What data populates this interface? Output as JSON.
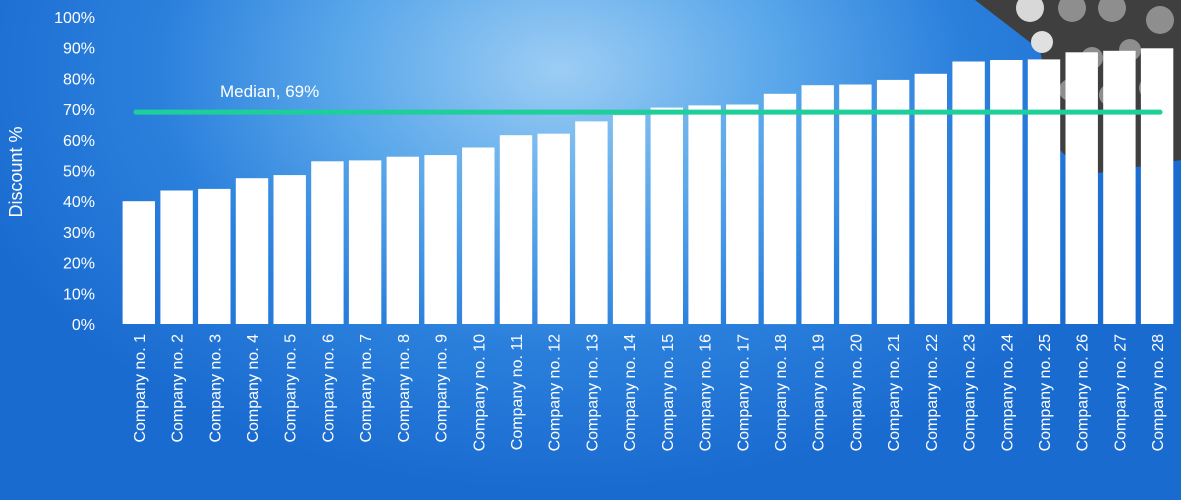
{
  "chart_data": {
    "type": "bar",
    "ylabel": "Discount %",
    "ylim": [
      0,
      100
    ],
    "yticks": [
      "0%",
      "10%",
      "20%",
      "30%",
      "40%",
      "50%",
      "60%",
      "70%",
      "80%",
      "90%",
      "100%"
    ],
    "categories": [
      "Company no. 1",
      "Company no. 2",
      "Company no. 3",
      "Company no. 4",
      "Company no. 5",
      "Company no. 6",
      "Company no. 7",
      "Company no. 8",
      "Company no. 9",
      "Company no. 10",
      "Company no. 11",
      "Company no. 12",
      "Company no. 13",
      "Company no. 14",
      "Company no. 15",
      "Company no. 16",
      "Company no. 17",
      "Company no. 18",
      "Company no. 19",
      "Company no. 20",
      "Company no. 21",
      "Company no. 22",
      "Company no. 23",
      "Company no. 24",
      "Company no. 25",
      "Company no. 26",
      "Company no. 27",
      "Company no. 28"
    ],
    "values": [
      40,
      43.5,
      44,
      47.5,
      48.5,
      53,
      53.3,
      54.5,
      55,
      57.5,
      61.5,
      62,
      66,
      68,
      70.5,
      71.2,
      71.5,
      75,
      77.8,
      78,
      79.5,
      81.5,
      85.5,
      86,
      86.2,
      88.5,
      89,
      89.8
    ],
    "median": {
      "value": 69,
      "label": "Median, 69%"
    },
    "colors": {
      "bars": "#ffffff",
      "median_line": "#1fcf9a",
      "background": "#2b80dc"
    },
    "grid": false,
    "legend": "none"
  }
}
